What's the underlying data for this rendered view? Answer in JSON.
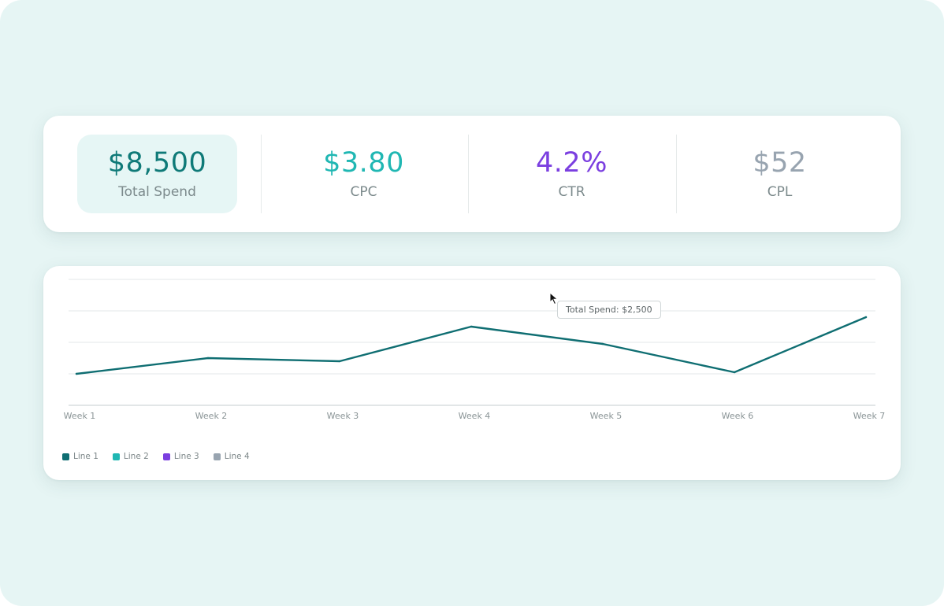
{
  "kpis": [
    {
      "value": "$8,500",
      "label": "Total Spend",
      "color": "#0f7a78",
      "active": true
    },
    {
      "value": "$3.80",
      "label": "CPC",
      "color": "#20b7b3",
      "active": false
    },
    {
      "value": "4.2%",
      "label": "CTR",
      "color": "#7b3fe0",
      "active": false
    },
    {
      "value": "$52",
      "label": "CPL",
      "color": "#98a4b0",
      "active": false
    }
  ],
  "tooltip": {
    "text": "Total Spend: $2,500"
  },
  "legend": [
    {
      "label": "Line 1",
      "color": "#0f6e72"
    },
    {
      "label": "Line 2",
      "color": "#20b7b3"
    },
    {
      "label": "Line 3",
      "color": "#7b3fe0"
    },
    {
      "label": "Line 4",
      "color": "#98a4b0"
    }
  ],
  "chart_data": {
    "type": "line",
    "categories": [
      "Week 1",
      "Week 2",
      "Week 3",
      "Week 4",
      "Week 5",
      "Week 6",
      "Week 7"
    ],
    "series": [
      {
        "name": "Line 1",
        "color": "#0f6e72",
        "values": [
          1000,
          1500,
          1400,
          2500,
          1950,
          1050,
          2800
        ]
      }
    ],
    "ylim": [
      0,
      4000
    ],
    "grid": true,
    "legend_position": "bottom-left"
  }
}
